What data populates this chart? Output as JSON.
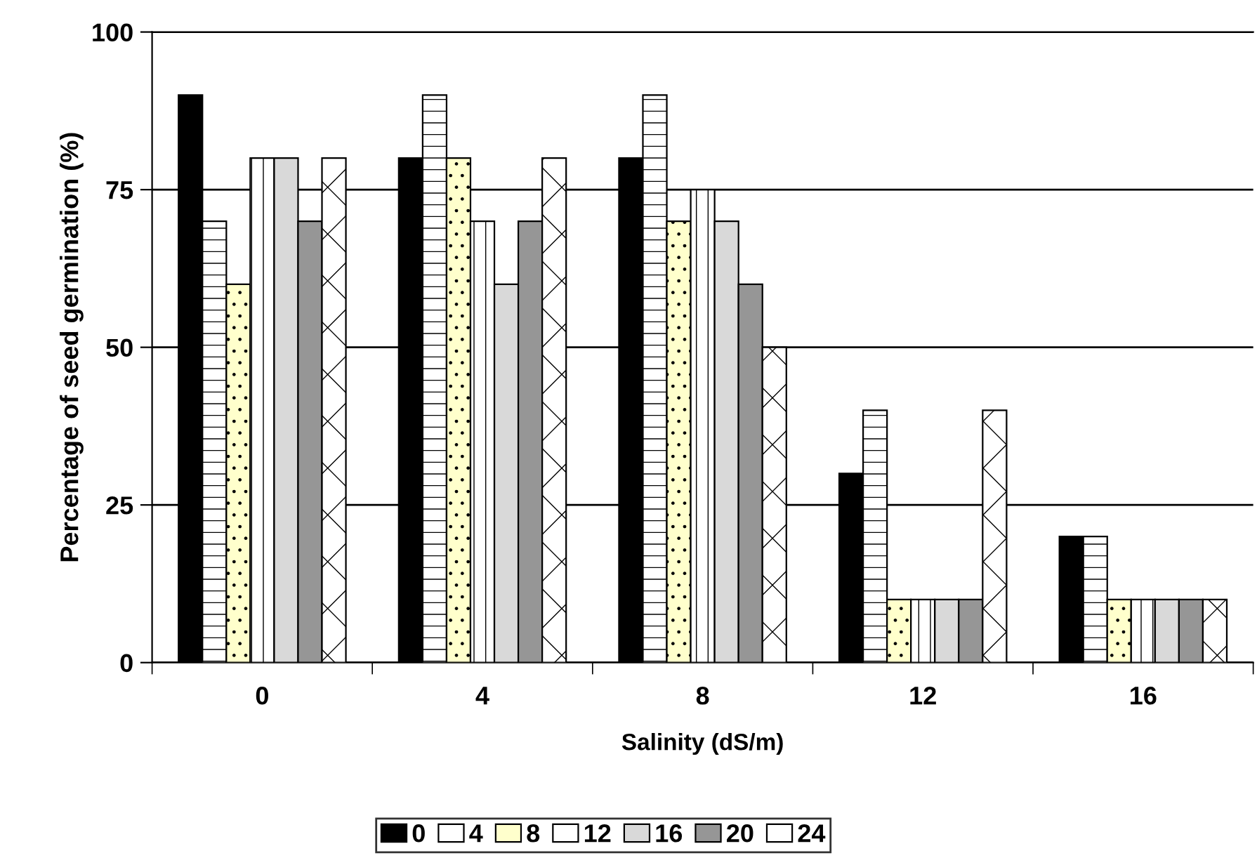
{
  "chart_data": {
    "type": "bar",
    "xlabel": "Salinity (dS/m)",
    "ylabel": "Percentage of seed germination (%)",
    "categories": [
      "0",
      "4",
      "8",
      "12",
      "16"
    ],
    "series": [
      {
        "name": "0",
        "color": "#000000",
        "values": [
          90,
          80,
          80,
          30,
          20
        ]
      },
      {
        "name": "4",
        "color": "#ffffff",
        "values": [
          70,
          90,
          90,
          40,
          20
        ]
      },
      {
        "name": "8",
        "color": "#ffffcc",
        "values": [
          60,
          80,
          70,
          10,
          10
        ]
      },
      {
        "name": "12",
        "color": "#ffffff",
        "values": [
          80,
          70,
          75,
          10,
          10
        ]
      },
      {
        "name": "16",
        "color": "#d9d9d9",
        "values": [
          80,
          60,
          70,
          10,
          10
        ]
      },
      {
        "name": "20",
        "color": "#969696",
        "values": [
          70,
          70,
          60,
          10,
          10
        ]
      },
      {
        "name": "24",
        "color": "#ffffff",
        "values": [
          80,
          80,
          50,
          40,
          10
        ]
      }
    ],
    "ylim": [
      0,
      100
    ],
    "yticks": [
      0,
      25,
      50,
      75,
      100
    ],
    "grid": "y",
    "legend": "bottom"
  }
}
